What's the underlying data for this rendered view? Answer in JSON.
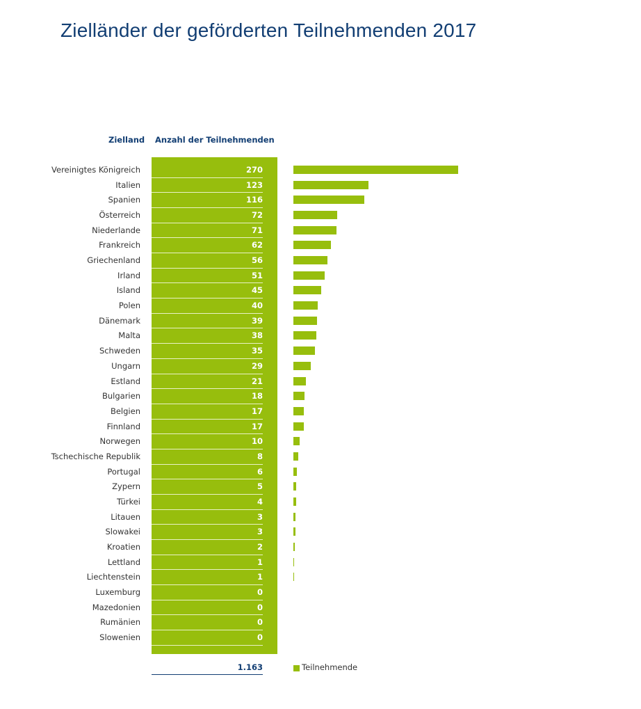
{
  "title": "Zielländer der geförderten Teilnehmenden 2017",
  "chart_data": {
    "type": "bar",
    "orientation": "horizontal",
    "title": "Zielländer der geförderten Teilnehmenden 2017",
    "category_header": "Zielland",
    "value_header": "Anzahl der Teilnehmenden",
    "categories": [
      "Vereinigtes Königreich",
      "Italien",
      "Spanien",
      "Österreich",
      "Niederlande",
      "Frankreich",
      "Griechenland",
      "Irland",
      "Island",
      "Polen",
      "Dänemark",
      "Malta",
      "Schweden",
      "Ungarn",
      "Estland",
      "Bulgarien",
      "Belgien",
      "Finnland",
      "Norwegen",
      "Tschechische Republik",
      "Portugal",
      "Zypern",
      "Türkei",
      "Litauen",
      "Slowakei",
      "Kroatien",
      "Lettland",
      "Liechtenstein",
      "Luxemburg",
      "Mazedonien",
      "Rumänien",
      "Slowenien"
    ],
    "series": [
      {
        "name": "Teilnehmende",
        "values": [
          270,
          123,
          116,
          72,
          71,
          62,
          56,
          51,
          45,
          40,
          39,
          38,
          35,
          29,
          21,
          18,
          17,
          17,
          10,
          8,
          6,
          5,
          4,
          3,
          3,
          2,
          1,
          1,
          0,
          0,
          0,
          0
        ]
      }
    ],
    "value_labels": [
      "270",
      "123",
      "116",
      "72",
      "71",
      "62",
      "56",
      "51",
      "45",
      "40",
      "39",
      "38",
      "35",
      "29",
      "21",
      "18",
      "17",
      "17",
      "10",
      "8",
      "6",
      "5",
      "4",
      "3",
      "3",
      "2",
      "1",
      "1",
      "0",
      "0",
      "0",
      "0"
    ],
    "total": "1.163",
    "legend": "Teilnehmende",
    "legend_position": "bottom",
    "grid": false,
    "color": "#97be0d"
  }
}
